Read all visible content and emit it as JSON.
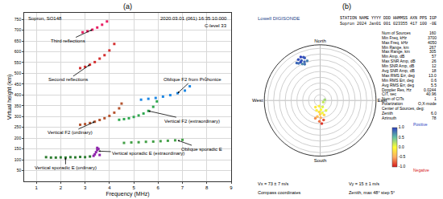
{
  "chart_data": [
    {
      "type": "scatter",
      "title": "(a)",
      "header": {
        "station": "Sopron, SO148",
        "time": "2020.03.01 (061) 16:35:10.000",
        "level": "C-level 33"
      },
      "x_label": "Frequency (MHz)",
      "y_label": "Virtual height (km)",
      "xlim": [
        0.5,
        9
      ],
      "xticks": [
        1,
        2,
        3,
        4,
        5,
        6,
        7,
        8,
        9
      ],
      "ylim": [
        0,
        780
      ],
      "yticks": [
        50,
        100,
        150,
        200,
        250,
        300,
        350,
        400,
        450,
        500,
        550,
        600,
        650,
        700,
        750
      ],
      "grid": true,
      "marker": "square",
      "series": [
        {
          "color": "#2e7d32",
          "x": [
            1.4,
            1.6,
            1.8,
            2.0,
            2.2,
            2.4,
            2.6,
            2.8,
            3.0,
            3.2
          ],
          "y": [
            112,
            110,
            110,
            111,
            110,
            112,
            111,
            113,
            112,
            115
          ],
          "label": {
            "text": "Vertical sporadic E (ordinary)",
            "x": 2.2,
            "y": 110,
            "text_x": 2.2,
            "text_y": 62
          }
        },
        {
          "color": "#8e24aa",
          "x": [
            3.35,
            3.4,
            3.45,
            3.5,
            3.5,
            3.55,
            3.6
          ],
          "y": [
            118,
            125,
            135,
            145,
            155,
            150,
            122
          ],
          "label": {
            "text": "Vertical sporadic E (extraordinary)",
            "x": 3.55,
            "y": 140,
            "text_x": 5.6,
            "text_y": 130
          }
        },
        {
          "color": "#43a047",
          "x": [
            4.6,
            4.9,
            5.2,
            5.5,
            5.8,
            6.1,
            6.4,
            6.7,
            7.0
          ],
          "y": [
            178,
            180,
            181,
            183,
            184,
            186,
            188,
            190,
            192
          ],
          "label": {
            "text": "Oblique sporadic E",
            "x": 6.8,
            "y": 190,
            "text_x": 7.8,
            "text_y": 150
          }
        },
        {
          "color": "#b5542f",
          "x": [
            2.8,
            3.0,
            3.2,
            3.4,
            3.6,
            3.8,
            4.0,
            4.2,
            4.4,
            4.5
          ],
          "y": [
            262,
            265,
            270,
            276,
            284,
            292,
            303,
            318,
            338,
            360
          ],
          "label": {
            "text": "Vertical F2 (ordinary)",
            "x": 3.4,
            "y": 276,
            "text_x": 2.4,
            "text_y": 225
          }
        },
        {
          "color": "#2fa84f",
          "x": [
            4.4,
            4.6,
            4.8,
            5.0,
            5.2,
            5.4,
            5.6,
            5.8,
            5.95
          ],
          "y": [
            285,
            288,
            292,
            298,
            305,
            314,
            326,
            345,
            370
          ],
          "label": {
            "text": "Vertical F2 (extraordinary)",
            "x": 5.6,
            "y": 326,
            "text_x": 7.4,
            "text_y": 280
          }
        },
        {
          "color": "#1e88e5",
          "x": [
            5.3,
            5.6,
            5.9,
            6.2,
            6.5,
            6.8,
            7.1,
            7.3
          ],
          "y": [
            378,
            382,
            386,
            392,
            399,
            408,
            420,
            440
          ],
          "label": {
            "text": "Oblique F2 from Průhonice",
            "x": 6.8,
            "y": 408,
            "text_x": 7.4,
            "text_y": 470
          }
        },
        {
          "color": "#d32f2f",
          "x": [
            2.8,
            3.0,
            3.2,
            3.4,
            3.6,
            3.8,
            4.0,
            4.2
          ],
          "y": [
            524,
            530,
            540,
            552,
            568,
            584,
            606,
            636
          ],
          "label": {
            "text": "Second reflections",
            "x": 3.2,
            "y": 540,
            "text_x": 2.3,
            "text_y": 470
          }
        },
        {
          "color": "#e91e63",
          "x": [
            2.9,
            3.1,
            3.3,
            3.5,
            3.7,
            3.9
          ],
          "y": [
            690,
            695,
            702,
            712,
            725,
            740
          ],
          "label": {
            "text": "Third reflections",
            "x": 3.3,
            "y": 702,
            "text_x": 2.3,
            "text_y": 650
          }
        }
      ]
    },
    {
      "type": "polar_scatter",
      "title": "(b)",
      "logo": "Lowell DIGISONDE",
      "header": [
        "STATION NAME YYYY DDD HHMMSS AXN PPS IGP",
        "Sopron 2024 Jan01 001 023355 417 100 -0E"
      ],
      "r": [
        38,
        36,
        40,
        37,
        39,
        35,
        41,
        38,
        36,
        40,
        37,
        34,
        5,
        8,
        10,
        12,
        15,
        18,
        20,
        6,
        9,
        11,
        14,
        3,
        7,
        13,
        16,
        4,
        10,
        17
      ],
      "theta": [
        335,
        338,
        332,
        330,
        340,
        334,
        336,
        328,
        342,
        339,
        333,
        337,
        190,
        175,
        185,
        180,
        178,
        182,
        176,
        160,
        200,
        170,
        190,
        120,
        215,
        165,
        195,
        80,
        150,
        170
      ],
      "doppler": [
        0.9,
        0.85,
        0.95,
        0.8,
        0.9,
        0.7,
        1.0,
        0.85,
        0.75,
        0.9,
        0.95,
        0.8,
        -0.1,
        0.0,
        -0.2,
        -0.3,
        -0.5,
        -0.7,
        -0.9,
        0.1,
        -0.1,
        0.05,
        -0.4,
        0.2,
        -0.15,
        -0.25,
        -0.6,
        0.3,
        0.1,
        -0.8
      ],
      "rlim": [
        0,
        48
      ],
      "rticks": [
        5,
        10,
        15,
        20,
        25,
        30,
        35,
        40,
        45
      ],
      "tick_labels": false,
      "angle_ticks": [
        {
          "value": 0,
          "label": "North"
        },
        {
          "value": 90,
          "label": "East"
        },
        {
          "value": 180,
          "label": "South"
        },
        {
          "value": 270,
          "label": "West"
        }
      ],
      "color_range": [
        -1,
        1
      ],
      "color_ticks": [
        {
          "value": -1,
          "label": "-1.0"
        },
        {
          "value": -0.5,
          "label": "-0.5"
        },
        {
          "value": 0,
          "label": "0.0"
        },
        {
          "value": 0.5,
          "label": "0.5"
        },
        {
          "value": 1,
          "label": "1.0"
        }
      ],
      "color_notes": [
        "Positive",
        "Negative"
      ],
      "stats": [
        [
          "Num of Sources",
          "160"
        ],
        [
          "Min Freq, kHz",
          "3700"
        ],
        [
          "Max Freq, kHz",
          "4050"
        ],
        [
          "Min Range, km",
          "267"
        ],
        [
          "Max Range, km",
          "305"
        ],
        [
          "Min Amp, dB",
          "57"
        ],
        [
          "Max SNR Amp, dB",
          "26"
        ],
        [
          "Min SNR Amp, dB",
          "12"
        ],
        [
          "Avg SNR Amp, dB",
          "18"
        ],
        [
          "Max RMS Err, deg",
          "13.0"
        ],
        [
          "Min RMS Err, deg",
          "0.6"
        ],
        [
          "Avg RMS Err, deg",
          "5.5"
        ],
        [
          "Doppler Res, Hz",
          "0.0244"
        ],
        [
          "CIT, sec",
          "40.96"
        ],
        [
          "Num of CITs",
          "1"
        ],
        [
          "Polarization",
          "O,X-mode"
        ],
        [
          "Center of Sources, deg:"
        ],
        [
          "Zenith",
          "6.0"
        ],
        [
          "Azimuth",
          "78"
        ]
      ],
      "notes": [
        "Vx = 73 ± 7 m/s",
        "Vy = 15 ± 1 m/s",
        "Compass coordinates",
        "Zenith, max 48° step 5°"
      ]
    }
  ]
}
